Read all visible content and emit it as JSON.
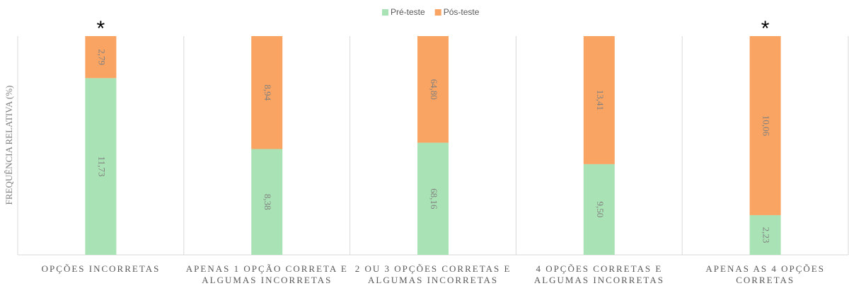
{
  "chart_data": {
    "type": "bar",
    "stacking": "percent",
    "y_label": "FREQUÊNCIA RELATIVA (%)",
    "categories": [
      "OPÇÕES INCORRETAS",
      "APENAS 1 OPÇÃO CORRETA E ALGUMAS INCORRETAS",
      "2 OU 3 OPÇÕES CORRETAS E ALGUMAS INCORRETAS",
      "4 OPÇÕES CORRETAS E ALGUMAS INCORRETAS",
      "APENAS AS 4 OPÇÕES CORRETAS"
    ],
    "annotations": [
      "*",
      null,
      null,
      null,
      "*"
    ],
    "series": [
      {
        "name": "Pré-teste",
        "color": "#a9e2b4",
        "values": [
          11.73,
          8.38,
          68.16,
          9.5,
          2.23
        ],
        "value_labels": [
          "11,73",
          "8,38",
          "68,16",
          "9,50",
          "2,23"
        ]
      },
      {
        "name": "Pós-teste",
        "color": "#f9a462",
        "values": [
          2.79,
          8.94,
          64.8,
          13.41,
          10.06
        ],
        "value_labels": [
          "2,79",
          "8,94",
          "64,80",
          "13,41",
          "10,06"
        ]
      }
    ],
    "legend": "top",
    "grid": "vertical"
  }
}
